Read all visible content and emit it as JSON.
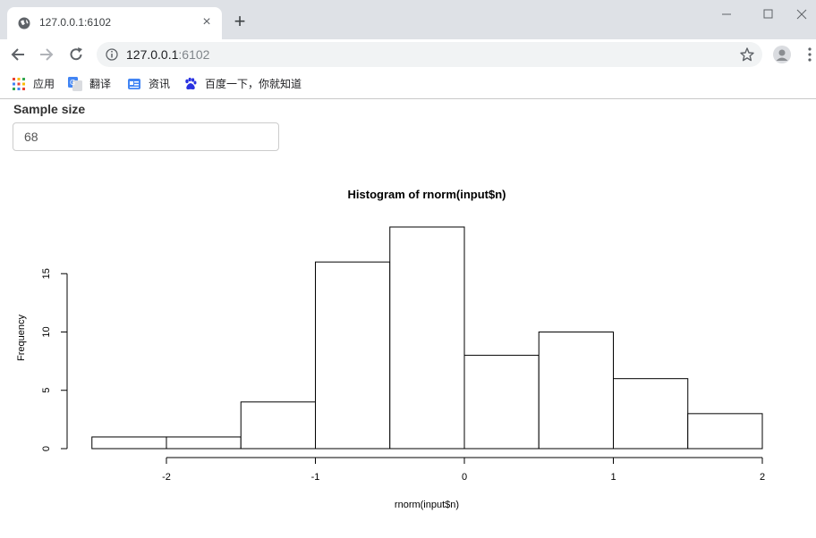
{
  "browser": {
    "tab_title": "127.0.0.1:6102",
    "url_host": "127.0.0.1",
    "url_port": ":6102",
    "new_tab_glyph": "+",
    "close_glyph": "×",
    "bookmarks": [
      {
        "label": "应用",
        "icon": "apps-grid-icon"
      },
      {
        "label": "翻译",
        "icon": "google-translate-icon"
      },
      {
        "label": "资讯",
        "icon": "news-icon"
      },
      {
        "label": "百度一下，你就知道",
        "icon": "baidu-paw-icon"
      }
    ]
  },
  "app": {
    "input_label": "Sample size",
    "input_value": "68"
  },
  "chart_data": {
    "type": "bar",
    "title": "Histogram of rnorm(input$n)",
    "xlabel": "rnorm(input$n)",
    "ylabel": "Frequency",
    "bins": [
      {
        "x0": -2.5,
        "x1": -2.0,
        "count": 1
      },
      {
        "x0": -2.0,
        "x1": -1.5,
        "count": 1
      },
      {
        "x0": -1.5,
        "x1": -1.0,
        "count": 4
      },
      {
        "x0": -1.0,
        "x1": -0.5,
        "count": 16
      },
      {
        "x0": -0.5,
        "x1": 0.0,
        "count": 19
      },
      {
        "x0": 0.0,
        "x1": 0.5,
        "count": 8
      },
      {
        "x0": 0.5,
        "x1": 1.0,
        "count": 10
      },
      {
        "x0": 1.0,
        "x1": 1.5,
        "count": 6
      },
      {
        "x0": 1.5,
        "x1": 2.0,
        "count": 3
      }
    ],
    "xticks": [
      -2,
      -1,
      0,
      1,
      2
    ],
    "xtick_labels": [
      "-2",
      "-1",
      "0",
      "1",
      "2"
    ],
    "yticks": [
      0,
      5,
      10,
      15
    ],
    "ytick_labels": [
      "0",
      "5",
      "10",
      "15"
    ],
    "xlim": [
      -2.5,
      2.0
    ],
    "ylim": [
      0,
      19
    ],
    "grid": false
  }
}
